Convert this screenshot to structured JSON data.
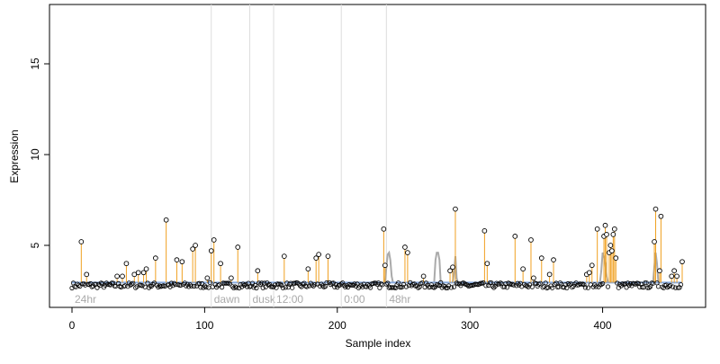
{
  "chart_data": {
    "type": "scatter",
    "xlabel": "Sample index",
    "ylabel": "Expression",
    "xlim": [
      0,
      460
    ],
    "ylim": [
      2.7,
      18.5
    ],
    "x_ticks": [
      0,
      100,
      200,
      300,
      400
    ],
    "y_ticks": [
      5,
      10,
      15
    ],
    "baseline": 2.95,
    "annotations": [
      {
        "x": 105,
        "label": "dawn"
      },
      {
        "x": 134,
        "label": "dusk"
      },
      {
        "x": 152,
        "label": "12:00"
      },
      {
        "x": 203,
        "label": "0:00"
      },
      {
        "x": 237,
        "label": "48hr"
      }
    ],
    "start_label": "24hr",
    "colors": {
      "spike": "#f0a020",
      "baseline": "#88aadd",
      "gray_line": "#aaaaaa",
      "annotation_line": "#dddddd",
      "annotation_text": "#aaaaaa",
      "point_stroke": "#000000"
    },
    "gray_segments": [
      [
        [
          236,
          2.95
        ],
        [
          237,
          3.8
        ],
        [
          238,
          4.5
        ],
        [
          239,
          4.6
        ],
        [
          240,
          4.2
        ],
        [
          241,
          3.3
        ],
        [
          242,
          2.95
        ]
      ],
      [
        [
          273,
          2.95
        ],
        [
          274,
          4.2
        ],
        [
          275,
          4.6
        ],
        [
          276,
          4.6
        ],
        [
          277,
          4.2
        ],
        [
          278,
          2.95
        ]
      ],
      [
        [
          287,
          2.95
        ],
        [
          288,
          3.5
        ],
        [
          289,
          4.4
        ],
        [
          290,
          3.2
        ],
        [
          291,
          2.95
        ]
      ],
      [
        [
          398,
          2.95
        ],
        [
          399,
          3.6
        ],
        [
          400,
          4.6
        ],
        [
          401,
          4.4
        ],
        [
          402,
          4.0
        ],
        [
          403,
          3.3
        ],
        [
          404,
          2.95
        ]
      ],
      [
        [
          438,
          2.95
        ],
        [
          439,
          3.8
        ],
        [
          440,
          4.6
        ],
        [
          441,
          4.0
        ],
        [
          442,
          2.95
        ]
      ]
    ],
    "spikes": [
      {
        "x": 7,
        "y": 5.2
      },
      {
        "x": 11,
        "y": 3.4
      },
      {
        "x": 34,
        "y": 3.3
      },
      {
        "x": 38,
        "y": 3.3
      },
      {
        "x": 41,
        "y": 4.0
      },
      {
        "x": 47,
        "y": 3.4
      },
      {
        "x": 50,
        "y": 3.5
      },
      {
        "x": 54,
        "y": 3.5
      },
      {
        "x": 56,
        "y": 3.7
      },
      {
        "x": 63,
        "y": 4.3
      },
      {
        "x": 71,
        "y": 6.4
      },
      {
        "x": 79,
        "y": 4.2
      },
      {
        "x": 83,
        "y": 4.1
      },
      {
        "x": 91,
        "y": 4.8
      },
      {
        "x": 93,
        "y": 5.0
      },
      {
        "x": 102,
        "y": 3.2
      },
      {
        "x": 105,
        "y": 4.7
      },
      {
        "x": 107,
        "y": 5.3
      },
      {
        "x": 112,
        "y": 4.0
      },
      {
        "x": 120,
        "y": 3.2
      },
      {
        "x": 125,
        "y": 4.9
      },
      {
        "x": 140,
        "y": 3.6
      },
      {
        "x": 160,
        "y": 4.4
      },
      {
        "x": 178,
        "y": 3.7
      },
      {
        "x": 184,
        "y": 4.3
      },
      {
        "x": 186,
        "y": 4.5
      },
      {
        "x": 193,
        "y": 4.4
      },
      {
        "x": 235,
        "y": 5.9
      },
      {
        "x": 236,
        "y": 3.9
      },
      {
        "x": 251,
        "y": 4.9
      },
      {
        "x": 253,
        "y": 4.6
      },
      {
        "x": 265,
        "y": 3.3
      },
      {
        "x": 285,
        "y": 3.6
      },
      {
        "x": 287,
        "y": 3.8
      },
      {
        "x": 289,
        "y": 7.0
      },
      {
        "x": 311,
        "y": 5.8
      },
      {
        "x": 313,
        "y": 4.0
      },
      {
        "x": 334,
        "y": 5.5
      },
      {
        "x": 340,
        "y": 3.7
      },
      {
        "x": 346,
        "y": 5.3
      },
      {
        "x": 348,
        "y": 3.2
      },
      {
        "x": 354,
        "y": 4.3
      },
      {
        "x": 360,
        "y": 3.4
      },
      {
        "x": 363,
        "y": 4.2
      },
      {
        "x": 388,
        "y": 3.4
      },
      {
        "x": 390,
        "y": 3.5
      },
      {
        "x": 392,
        "y": 3.9
      },
      {
        "x": 396,
        "y": 5.9
      },
      {
        "x": 401,
        "y": 5.5
      },
      {
        "x": 402,
        "y": 6.1
      },
      {
        "x": 403,
        "y": 5.6
      },
      {
        "x": 405,
        "y": 4.6
      },
      {
        "x": 406,
        "y": 5.0
      },
      {
        "x": 407,
        "y": 4.7
      },
      {
        "x": 408,
        "y": 5.6
      },
      {
        "x": 409,
        "y": 5.9
      },
      {
        "x": 410,
        "y": 4.3
      },
      {
        "x": 439,
        "y": 5.2
      },
      {
        "x": 440,
        "y": 7.0
      },
      {
        "x": 443,
        "y": 3.6
      },
      {
        "x": 444,
        "y": 6.6
      },
      {
        "x": 452,
        "y": 3.3
      },
      {
        "x": 454,
        "y": 3.6
      },
      {
        "x": 456,
        "y": 3.3
      },
      {
        "x": 460,
        "y": 4.1
      }
    ]
  }
}
